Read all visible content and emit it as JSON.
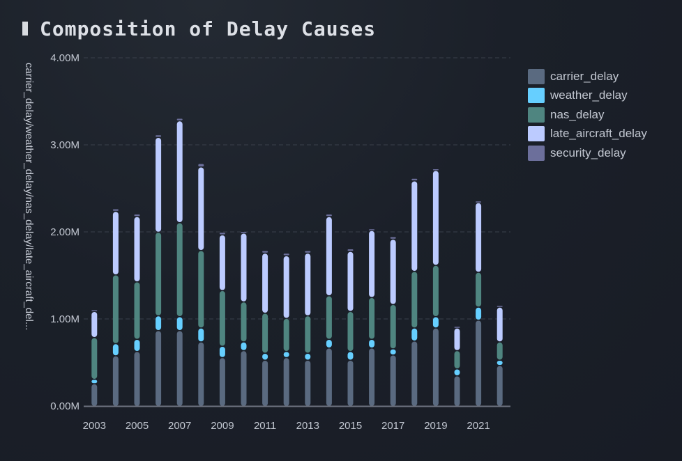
{
  "chart_data": {
    "type": "bar",
    "stacked": true,
    "title": "Composition of Delay Causes",
    "xlabel": "",
    "ylabel": "carrier_delay/weather_delay/nas_delay/late_aircraft_del...",
    "ylim": [
      0,
      4000000
    ],
    "yticks": [
      "0.00M",
      "1.00M",
      "2.00M",
      "3.00M",
      "4.00M"
    ],
    "ytick_values": [
      0,
      1000000,
      2000000,
      3000000,
      4000000
    ],
    "grid": true,
    "legend_position": "top-right",
    "categories": [
      "2003",
      "2004",
      "2005",
      "2006",
      "2007",
      "2008",
      "2009",
      "2010",
      "2011",
      "2012",
      "2013",
      "2014",
      "2015",
      "2016",
      "2017",
      "2018",
      "2019",
      "2020",
      "2021",
      "2022"
    ],
    "xtick_labels": [
      "2003",
      "2005",
      "2007",
      "2009",
      "2011",
      "2013",
      "2015",
      "2017",
      "2019",
      "2021"
    ],
    "series": [
      {
        "name": "carrier_delay",
        "color": "#5a6a80",
        "values": [
          250000,
          570000,
          620000,
          860000,
          860000,
          730000,
          550000,
          630000,
          520000,
          550000,
          520000,
          660000,
          520000,
          660000,
          580000,
          740000,
          890000,
          340000,
          980000,
          460000
        ]
      },
      {
        "name": "weather_delay",
        "color": "#66cfff",
        "values": [
          50000,
          140000,
          140000,
          170000,
          160000,
          160000,
          130000,
          100000,
          80000,
          70000,
          80000,
          100000,
          100000,
          100000,
          70000,
          150000,
          130000,
          80000,
          150000,
          60000
        ]
      },
      {
        "name": "nas_delay",
        "color": "#4f8580",
        "values": [
          480000,
          790000,
          660000,
          960000,
          1080000,
          890000,
          640000,
          460000,
          460000,
          380000,
          430000,
          500000,
          460000,
          480000,
          510000,
          650000,
          590000,
          210000,
          400000,
          210000
        ]
      },
      {
        "name": "late_aircraft_delay",
        "color": "#bccbff",
        "values": [
          300000,
          730000,
          750000,
          1090000,
          1170000,
          960000,
          640000,
          790000,
          690000,
          720000,
          720000,
          910000,
          690000,
          770000,
          750000,
          1040000,
          1090000,
          260000,
          800000,
          400000
        ]
      },
      {
        "name": "security_delay",
        "color": "#6c6f9b",
        "values": [
          20000,
          30000,
          30000,
          30000,
          30000,
          40000,
          30000,
          20000,
          30000,
          30000,
          30000,
          30000,
          30000,
          20000,
          30000,
          30000,
          20000,
          20000,
          20000,
          20000
        ]
      }
    ]
  }
}
